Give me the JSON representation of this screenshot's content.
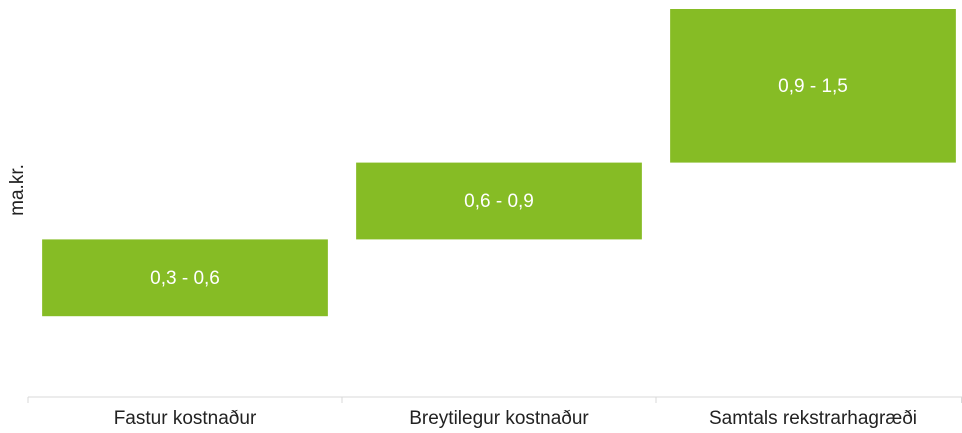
{
  "chart_data": {
    "type": "range-bar",
    "y_label": "ma.kr.",
    "categories": [
      "Fastur kostnaður",
      "Breytilegur kostnaður",
      "Samtals rekstrarhagræði"
    ],
    "low": [
      0.3,
      0.6,
      0.9
    ],
    "high": [
      0.6,
      0.9,
      1.5
    ],
    "value_labels": [
      "0,3 - 0,6",
      "0,6 - 0,9",
      "0,9 - 1,5"
    ],
    "color": "#86bc25",
    "ylim": [
      0,
      1.5
    ]
  }
}
